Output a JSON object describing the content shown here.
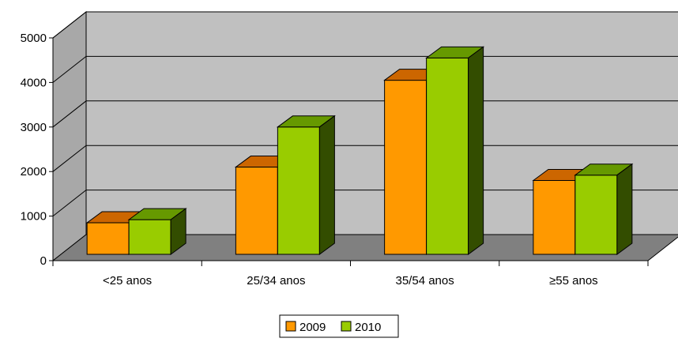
{
  "chart_data": {
    "type": "bar",
    "style": "3d-clustered-column",
    "categories": [
      "<25 anos",
      "25/34 anos",
      "35/54 anos",
      "≥55 anos"
    ],
    "series": [
      {
        "name": "2009",
        "values": [
          850,
          2100,
          4050,
          1800
        ],
        "color": "#FF9900",
        "top_color": "#CC6600",
        "side_color": "#B35900"
      },
      {
        "name": "2010",
        "values": [
          920,
          3000,
          4550,
          1920
        ],
        "color": "#99CC00",
        "top_color": "#669900",
        "side_color": "#334D00"
      }
    ],
    "yticks": [
      "0",
      "1000",
      "2000",
      "3000",
      "4000",
      "5000"
    ],
    "ylim": [
      0,
      5000
    ],
    "grid": true,
    "wall_color": "#C0C0C0",
    "floor_color": "#808080",
    "legend_position": "bottom"
  }
}
